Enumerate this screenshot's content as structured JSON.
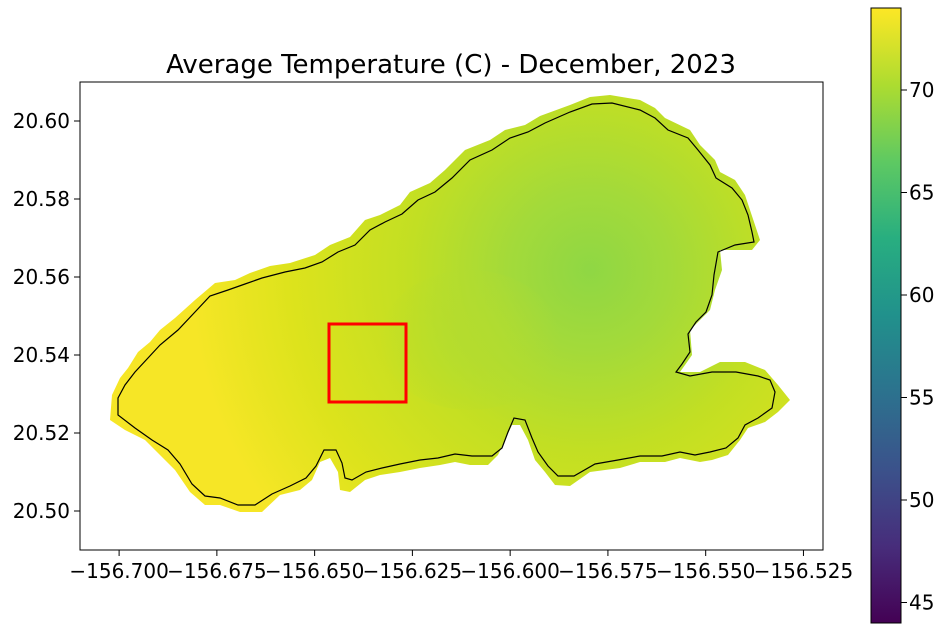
{
  "title": "Average Temperature (C) - December, 2023",
  "chart_data": {
    "type": "heatmap",
    "title": "Average Temperature (C) - December, 2023",
    "xlim": [
      -156.71,
      -156.52
    ],
    "ylim": [
      20.49,
      20.61
    ],
    "x_ticks": [
      -156.7,
      -156.675,
      -156.65,
      -156.625,
      -156.6,
      -156.575,
      -156.55,
      -156.525
    ],
    "x_tick_labels": [
      "−156.700",
      "−156.675",
      "−156.650",
      "−156.625",
      "−156.600",
      "−156.575",
      "−156.550",
      "−156.525"
    ],
    "y_ticks": [
      20.5,
      20.52,
      20.54,
      20.56,
      20.58,
      20.6
    ],
    "y_tick_labels": [
      "20.50",
      "20.52",
      "20.54",
      "20.56",
      "20.58",
      "20.60"
    ],
    "colorbar": {
      "colormap": "viridis",
      "range": [
        44,
        74
      ],
      "ticks": [
        45,
        50,
        55,
        60,
        65,
        70
      ],
      "tick_labels": [
        "45",
        "50",
        "55",
        "60",
        "65",
        "70"
      ]
    },
    "value_range_shown": [
      67,
      74
    ],
    "warm_edge_color": "#f6e626",
    "cool_center_color": "#8fd744",
    "highlight_box": {
      "lon_range": [
        -156.647,
        -156.627
      ],
      "lat_range": [
        20.528,
        20.548
      ],
      "color": "#ff0000"
    },
    "grid": false
  }
}
